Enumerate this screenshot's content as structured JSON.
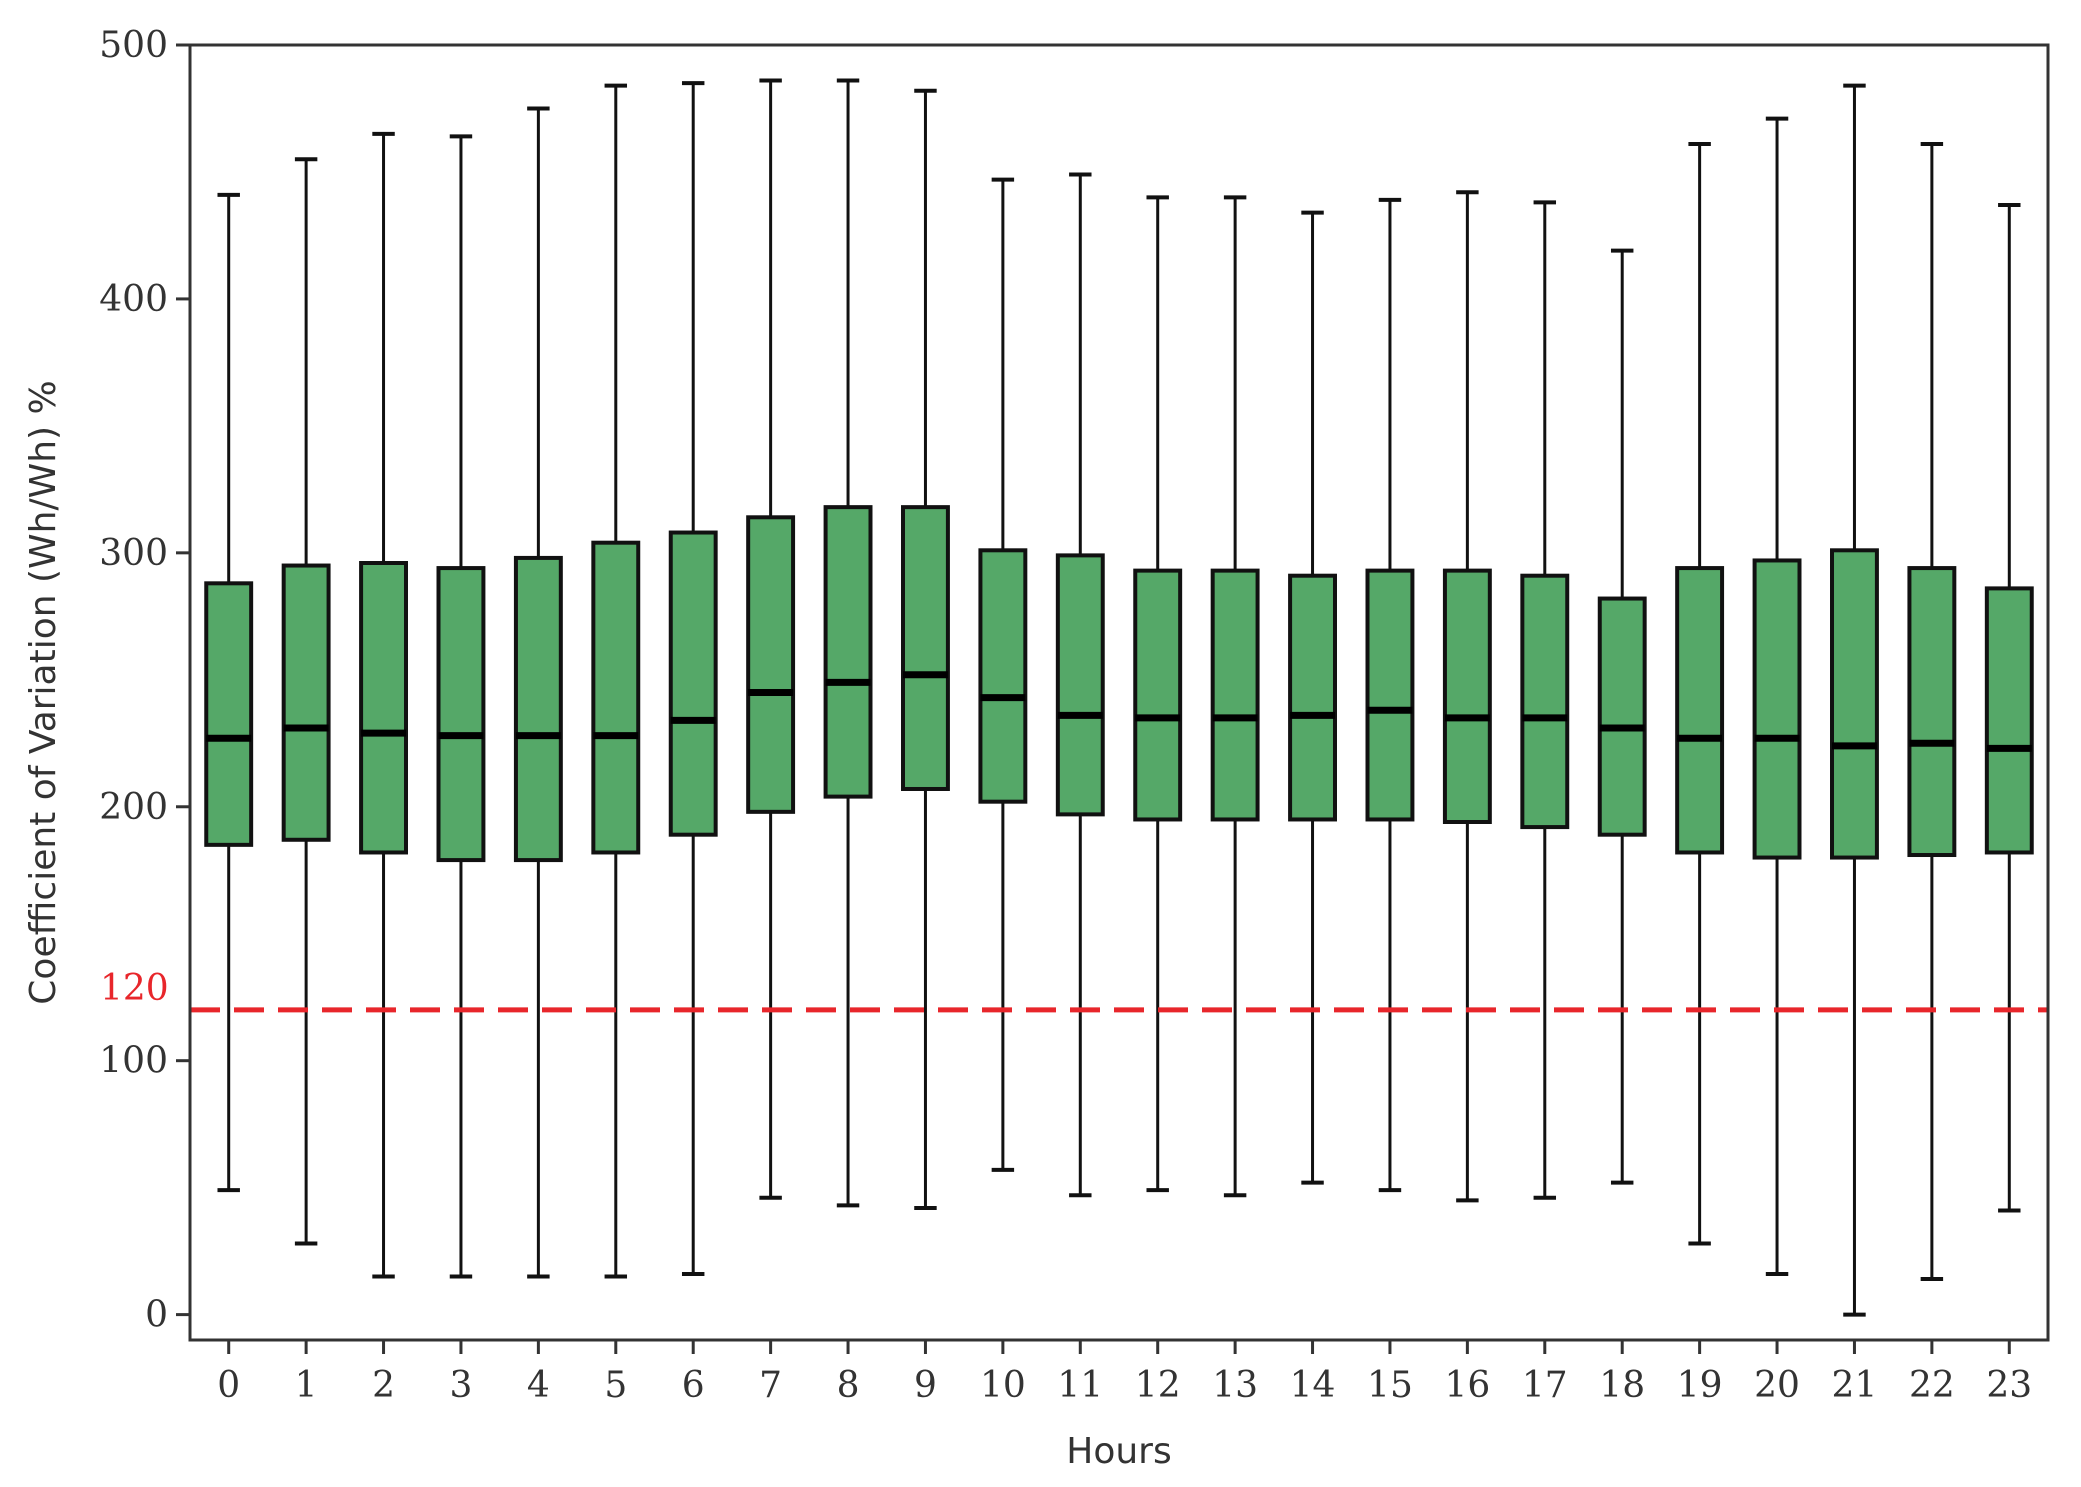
{
  "chart_data": {
    "type": "box",
    "xlabel": "Hours",
    "ylabel": "Coefficient of Variation (Wh/Wh) %",
    "ylim": [
      -10,
      500
    ],
    "yticks": [
      0,
      100,
      200,
      300,
      400,
      500
    ],
    "grid": false,
    "box_color": "#55a868",
    "reference_line": {
      "value": 120,
      "label": "120",
      "color": "#e8262b",
      "style": "dashed"
    },
    "categories": [
      "0",
      "1",
      "2",
      "3",
      "4",
      "5",
      "6",
      "7",
      "8",
      "9",
      "10",
      "11",
      "12",
      "13",
      "14",
      "15",
      "16",
      "17",
      "18",
      "19",
      "20",
      "21",
      "22",
      "23"
    ],
    "boxes": [
      {
        "min": 49,
        "q1": 185,
        "median": 227,
        "q3": 288,
        "max": 441
      },
      {
        "min": 28,
        "q1": 187,
        "median": 231,
        "q3": 295,
        "max": 455
      },
      {
        "min": 15,
        "q1": 182,
        "median": 229,
        "q3": 296,
        "max": 465
      },
      {
        "min": 15,
        "q1": 179,
        "median": 228,
        "q3": 294,
        "max": 464
      },
      {
        "min": 15,
        "q1": 179,
        "median": 228,
        "q3": 298,
        "max": 475
      },
      {
        "min": 15,
        "q1": 182,
        "median": 228,
        "q3": 304,
        "max": 484
      },
      {
        "min": 16,
        "q1": 189,
        "median": 234,
        "q3": 308,
        "max": 485
      },
      {
        "min": 46,
        "q1": 198,
        "median": 245,
        "q3": 314,
        "max": 486
      },
      {
        "min": 43,
        "q1": 204,
        "median": 249,
        "q3": 318,
        "max": 486
      },
      {
        "min": 42,
        "q1": 207,
        "median": 252,
        "q3": 318,
        "max": 482
      },
      {
        "min": 57,
        "q1": 202,
        "median": 243,
        "q3": 301,
        "max": 447
      },
      {
        "min": 47,
        "q1": 197,
        "median": 236,
        "q3": 299,
        "max": 449
      },
      {
        "min": 49,
        "q1": 195,
        "median": 235,
        "q3": 293,
        "max": 440
      },
      {
        "min": 47,
        "q1": 195,
        "median": 235,
        "q3": 293,
        "max": 440
      },
      {
        "min": 52,
        "q1": 195,
        "median": 236,
        "q3": 291,
        "max": 434
      },
      {
        "min": 49,
        "q1": 195,
        "median": 238,
        "q3": 293,
        "max": 439
      },
      {
        "min": 45,
        "q1": 194,
        "median": 235,
        "q3": 293,
        "max": 442
      },
      {
        "min": 46,
        "q1": 192,
        "median": 235,
        "q3": 291,
        "max": 438
      },
      {
        "min": 52,
        "q1": 189,
        "median": 231,
        "q3": 282,
        "max": 419
      },
      {
        "min": 28,
        "q1": 182,
        "median": 227,
        "q3": 294,
        "max": 461
      },
      {
        "min": 16,
        "q1": 180,
        "median": 227,
        "q3": 297,
        "max": 471
      },
      {
        "min": 0,
        "q1": 180,
        "median": 224,
        "q3": 301,
        "max": 484
      },
      {
        "min": 14,
        "q1": 181,
        "median": 225,
        "q3": 294,
        "max": 461
      },
      {
        "min": 41,
        "q1": 182,
        "median": 223,
        "q3": 286,
        "max": 437
      }
    ]
  }
}
